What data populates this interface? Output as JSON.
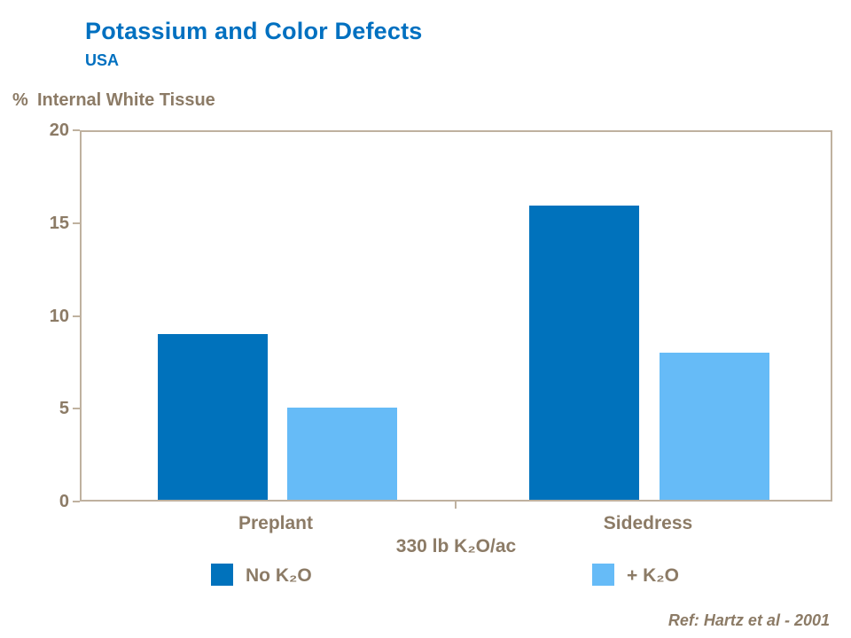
{
  "header": {
    "title": "Potassium and Color Defects",
    "subtitle": "USA"
  },
  "axis": {
    "y_prefix": "%",
    "y_label": "Internal White Tissue"
  },
  "chart_data": {
    "type": "bar",
    "title": "Potassium and Color Defects",
    "subtitle": "USA",
    "categories": [
      "Preplant",
      "Sidedress"
    ],
    "series": [
      {
        "name": "No K₂O",
        "color": "#0072BC",
        "values": [
          9,
          16
        ]
      },
      {
        "name": "+ K₂O",
        "color": "#66BBF7",
        "values": [
          5,
          8
        ]
      }
    ],
    "xlabel": "330 lb K₂O/ac",
    "ylabel": "% Internal White Tissue",
    "ylim": [
      0,
      20
    ],
    "yticks": [
      20,
      15,
      10,
      5,
      0
    ],
    "grid": false,
    "legend_position": "bottom",
    "annotation": "Ref: Hartz et al - 2001"
  },
  "footer": {
    "reference": "Ref: Hartz et al - 2001"
  }
}
